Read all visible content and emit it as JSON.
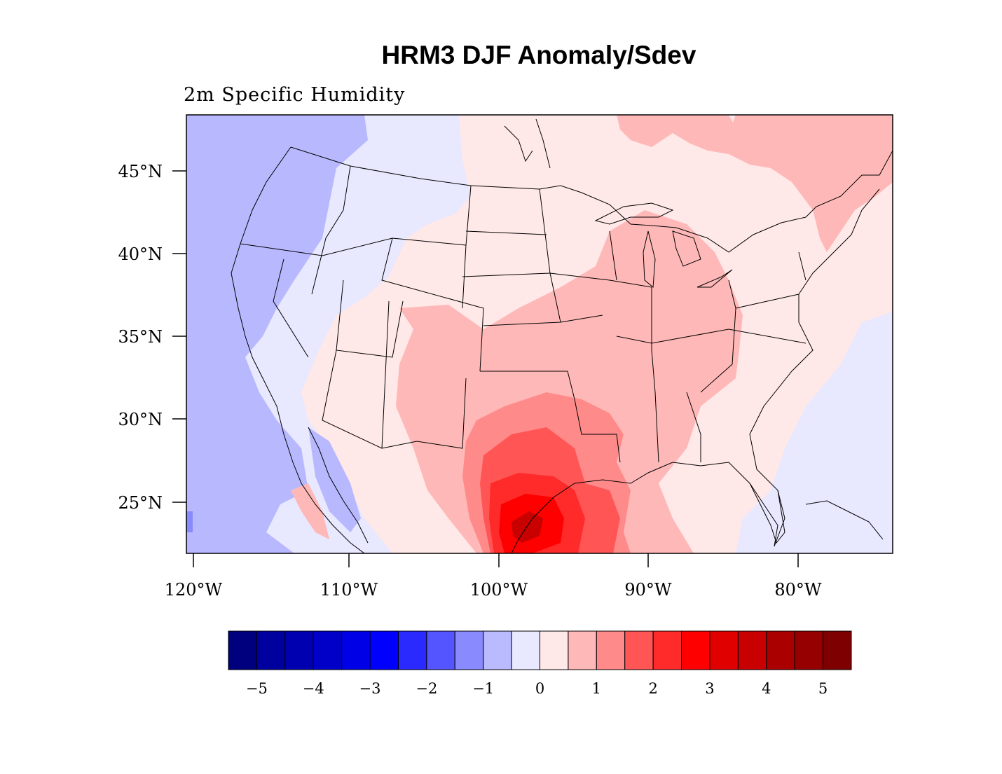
{
  "title": "HRM3 DJF Anomaly/Sdev",
  "subtitle": "2m Specific Humidity",
  "lat_ticks": [
    "45°N",
    "40°N",
    "35°N",
    "30°N",
    "25°N"
  ],
  "lon_ticks": [
    "120°W",
    "110°W",
    "100°W",
    "90°W",
    "80°W"
  ],
  "colorbar": {
    "colors": [
      "#00007f",
      "#00009f",
      "#0000b0",
      "#0000c8",
      "#0000e6",
      "#0000ff",
      "#2a2aff",
      "#5555ff",
      "#8a8aff",
      "#babaff",
      "#e8e8ff",
      "#ffe8e8",
      "#ffb8b8",
      "#ff8a8a",
      "#ff5555",
      "#ff2a2a",
      "#ff0000",
      "#e00000",
      "#c80000",
      "#aa0000",
      "#960000",
      "#7f0000"
    ],
    "labels": [
      "-5",
      "-4",
      "-3",
      "-2",
      "-1",
      "0",
      "1",
      "2",
      "3",
      "4",
      "5"
    ]
  },
  "colors": {
    "blue1": "#b8b8ff",
    "blue0": "#e8e8ff",
    "red0": "#ffe8e8",
    "red1": "#ffb8b8",
    "red2": "#ff8a8a",
    "red3": "#ff5555",
    "red4": "#ff2a2a",
    "red5": "#ff0000",
    "red6": "#c80000",
    "blue2": "#8a8aff"
  }
}
